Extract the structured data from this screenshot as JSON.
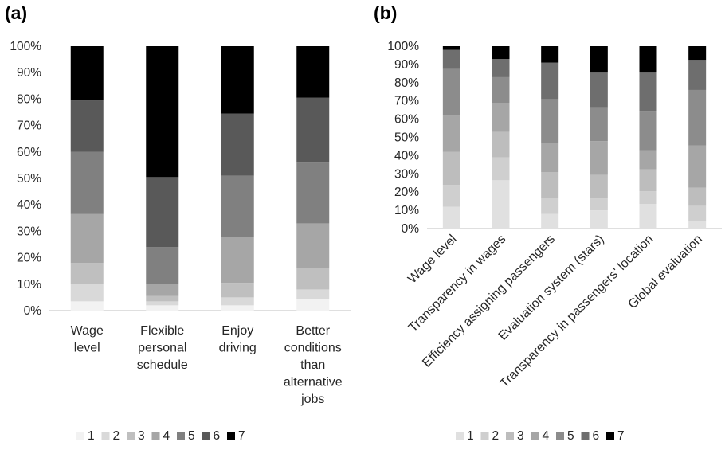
{
  "chart_data": [
    {
      "panel_label": "(a)",
      "type": "bar",
      "stacked": true,
      "percent": true,
      "ylim": [
        0,
        100
      ],
      "y_ticks": [
        "0%",
        "10%",
        "20%",
        "30%",
        "40%",
        "50%",
        "60%",
        "70%",
        "80%",
        "90%",
        "100%"
      ],
      "categories": [
        [
          "Wage",
          "level"
        ],
        [
          "Flexible",
          "personal",
          "schedule"
        ],
        [
          "Enjoy",
          "driving"
        ],
        [
          "Better",
          "conditions",
          "than",
          "alternative",
          "jobs"
        ]
      ],
      "series": [
        {
          "name": "1",
          "color": "#f2f2f2",
          "values": [
            3.5,
            2,
            2,
            4.5
          ]
        },
        {
          "name": "2",
          "color": "#d9d9d9",
          "values": [
            6.5,
            1.5,
            3,
            3.5
          ]
        },
        {
          "name": "3",
          "color": "#bfbfbf",
          "values": [
            8,
            2,
            5.5,
            8
          ]
        },
        {
          "name": "4",
          "color": "#a6a6a6",
          "values": [
            18.5,
            4.5,
            17.5,
            17
          ]
        },
        {
          "name": "5",
          "color": "#808080",
          "values": [
            23.5,
            14,
            23,
            23
          ]
        },
        {
          "name": "6",
          "color": "#595959",
          "values": [
            19.5,
            26.5,
            23.5,
            24.5
          ]
        },
        {
          "name": "7",
          "color": "#000000",
          "values": [
            20.5,
            49.5,
            25.5,
            19.5
          ]
        }
      ],
      "legend_position": "bottom"
    },
    {
      "panel_label": "(b)",
      "type": "bar",
      "stacked": true,
      "percent": true,
      "ylim": [
        0,
        100
      ],
      "y_ticks": [
        "0%",
        "10%",
        "20%",
        "30%",
        "40%",
        "50%",
        "60%",
        "70%",
        "80%",
        "90%",
        "100%"
      ],
      "categories": [
        "Wage level",
        "Transparency in wages",
        "Efficiency assigning passengers",
        "Evaluation system (stars)",
        "Transparency in passengers' location",
        "Global evaluation"
      ],
      "series": [
        {
          "name": "1",
          "color": "#e0e0e0",
          "values": [
            12,
            26.5,
            8,
            10,
            13.5,
            4
          ]
        },
        {
          "name": "2",
          "color": "#cfcfcf",
          "values": [
            12,
            12.5,
            9,
            6.5,
            7,
            8.5
          ]
        },
        {
          "name": "3",
          "color": "#bdbdbd",
          "values": [
            18,
            14,
            14,
            13,
            12,
            10
          ]
        },
        {
          "name": "4",
          "color": "#a6a6a6",
          "values": [
            20,
            16,
            16,
            18.5,
            10.5,
            23
          ]
        },
        {
          "name": "5",
          "color": "#8c8c8c",
          "values": [
            25.5,
            14,
            24,
            18.5,
            21.5,
            30.5
          ]
        },
        {
          "name": "6",
          "color": "#6e6e6e",
          "values": [
            10.5,
            10,
            20,
            19,
            21,
            16.5
          ]
        },
        {
          "name": "7",
          "color": "#000000",
          "values": [
            2,
            7,
            9,
            14.5,
            14.5,
            7.5
          ]
        }
      ],
      "legend_position": "bottom"
    }
  ]
}
